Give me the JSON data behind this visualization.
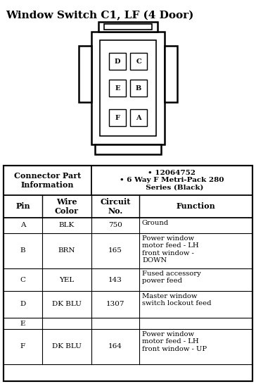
{
  "title": "Window Switch C1, LF (4 Door)",
  "connector_info_left": "Connector Part\nInformation",
  "connector_info_right": "• 12064752\n• 6 Way F Metri-Pack 280\n  Series (Black)",
  "col_headers": [
    "Pin",
    "Wire\nColor",
    "Circuit\nNo.",
    "Function"
  ],
  "rows": [
    [
      "A",
      "BLK",
      "750",
      "Ground"
    ],
    [
      "B",
      "BRN",
      "165",
      "Power window\nmotor feed - LH\nfront window -\nDOWN"
    ],
    [
      "C",
      "YEL",
      "143",
      "Fused accessory\npower feed"
    ],
    [
      "D",
      "DK BLU",
      "1307",
      "Master window\nswitch lockout feed"
    ],
    [
      "E",
      "",
      "",
      ""
    ],
    [
      "F",
      "DK BLU",
      "164",
      "Power window\nmotor feed - LH\nfront window - UP"
    ]
  ],
  "bg_color": "#ffffff"
}
